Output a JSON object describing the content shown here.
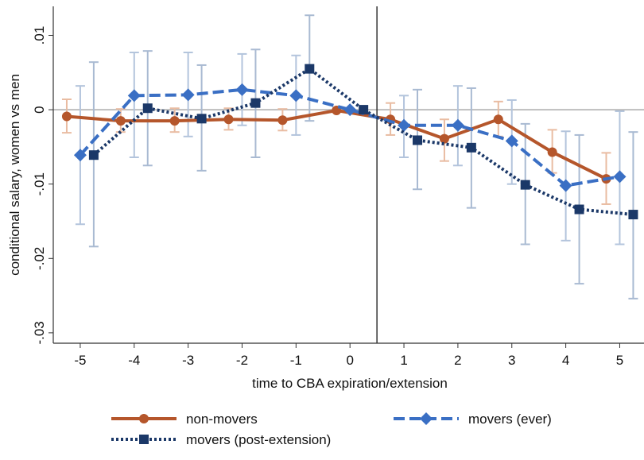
{
  "chart_data": {
    "type": "line",
    "x_label": "time to CBA expiration/extension",
    "y_label": "conditional salary, women vs men",
    "xlim": [
      -5.5,
      5.45
    ],
    "ylim": [
      -0.0314,
      0.0139
    ],
    "xticks": [
      -5,
      -4,
      -3,
      -2,
      -1,
      0,
      1,
      2,
      3,
      4,
      5
    ],
    "yticks": [
      {
        "value": 0.01,
        "label": ".01"
      },
      {
        "value": 0,
        "label": "0"
      },
      {
        "value": -0.01,
        "label": "-.01"
      },
      {
        "value": -0.02,
        "label": "-.02"
      },
      {
        "value": -0.03,
        "label": "-.03"
      }
    ],
    "xline": 0.5,
    "yline": 0,
    "series": [
      {
        "name": "non-movers",
        "color": "#b5562b",
        "ci_color": "#e9bca2",
        "marker": "circle",
        "dash": "solid",
        "x": [
          -5.25,
          -4.25,
          -3.25,
          -2.25,
          -1.25,
          -0.25,
          0.75,
          1.75,
          2.75,
          3.75,
          4.75
        ],
        "values": [
          -0.0009,
          -0.0015,
          -0.0015,
          -0.0013,
          -0.0014,
          -0.0001,
          -0.0013,
          -0.0039,
          -0.0013,
          -0.0057,
          -0.0093
        ],
        "ci_low": [
          -0.0031,
          -0.003,
          -0.003,
          -0.0027,
          -0.0028,
          null,
          -0.0034,
          -0.0069,
          -0.0036,
          -0.0085,
          -0.0127
        ],
        "ci_high": [
          0.0014,
          0.0001,
          0.0002,
          0.0002,
          0.0001,
          null,
          0.0009,
          -0.0013,
          0.0011,
          -0.0027,
          -0.0058
        ]
      },
      {
        "name": "movers (ever)",
        "color": "#3a6fc4",
        "ci_color": "#b3c4dc",
        "marker": "diamond",
        "dash": "dashed",
        "x": [
          -5,
          -4,
          -3,
          -2,
          -1,
          0,
          1,
          2,
          3,
          4,
          5
        ],
        "values": [
          -0.0061,
          0.0019,
          0.002,
          0.0027,
          0.0019,
          0,
          -0.0021,
          -0.0021,
          -0.0042,
          -0.0102,
          -0.009
        ],
        "ci_low": [
          -0.0154,
          -0.0064,
          -0.0036,
          -0.0021,
          -0.0034,
          null,
          -0.0064,
          -0.0075,
          -0.01,
          -0.0176,
          -0.0181
        ],
        "ci_high": [
          0.0032,
          0.0077,
          0.0077,
          0.0075,
          0.0073,
          null,
          0.0019,
          0.0032,
          0.0013,
          -0.0029,
          -0.0002
        ]
      },
      {
        "name": "movers (post-extension)",
        "color": "#1b3868",
        "ci_color": "#a9bad2",
        "marker": "square",
        "dash": "dotted",
        "x": [
          -4.75,
          -3.75,
          -2.75,
          -1.75,
          -0.75,
          0.25,
          1.25,
          2.25,
          3.25,
          4.25,
          5.25
        ],
        "values": [
          -0.0061,
          0.0002,
          -0.0012,
          0.0009,
          0.0055,
          0,
          -0.0041,
          -0.0051,
          -0.0101,
          -0.0134,
          -0.0141
        ],
        "ci_low": [
          -0.0184,
          -0.0075,
          -0.0082,
          -0.0064,
          -0.0015,
          null,
          -0.0107,
          -0.0132,
          -0.0181,
          -0.0234,
          -0.0254
        ],
        "ci_high": [
          0.0064,
          0.0079,
          0.006,
          0.0081,
          0.0127,
          null,
          0.0027,
          0.0029,
          -0.0019,
          -0.0034,
          -0.003
        ]
      }
    ]
  }
}
